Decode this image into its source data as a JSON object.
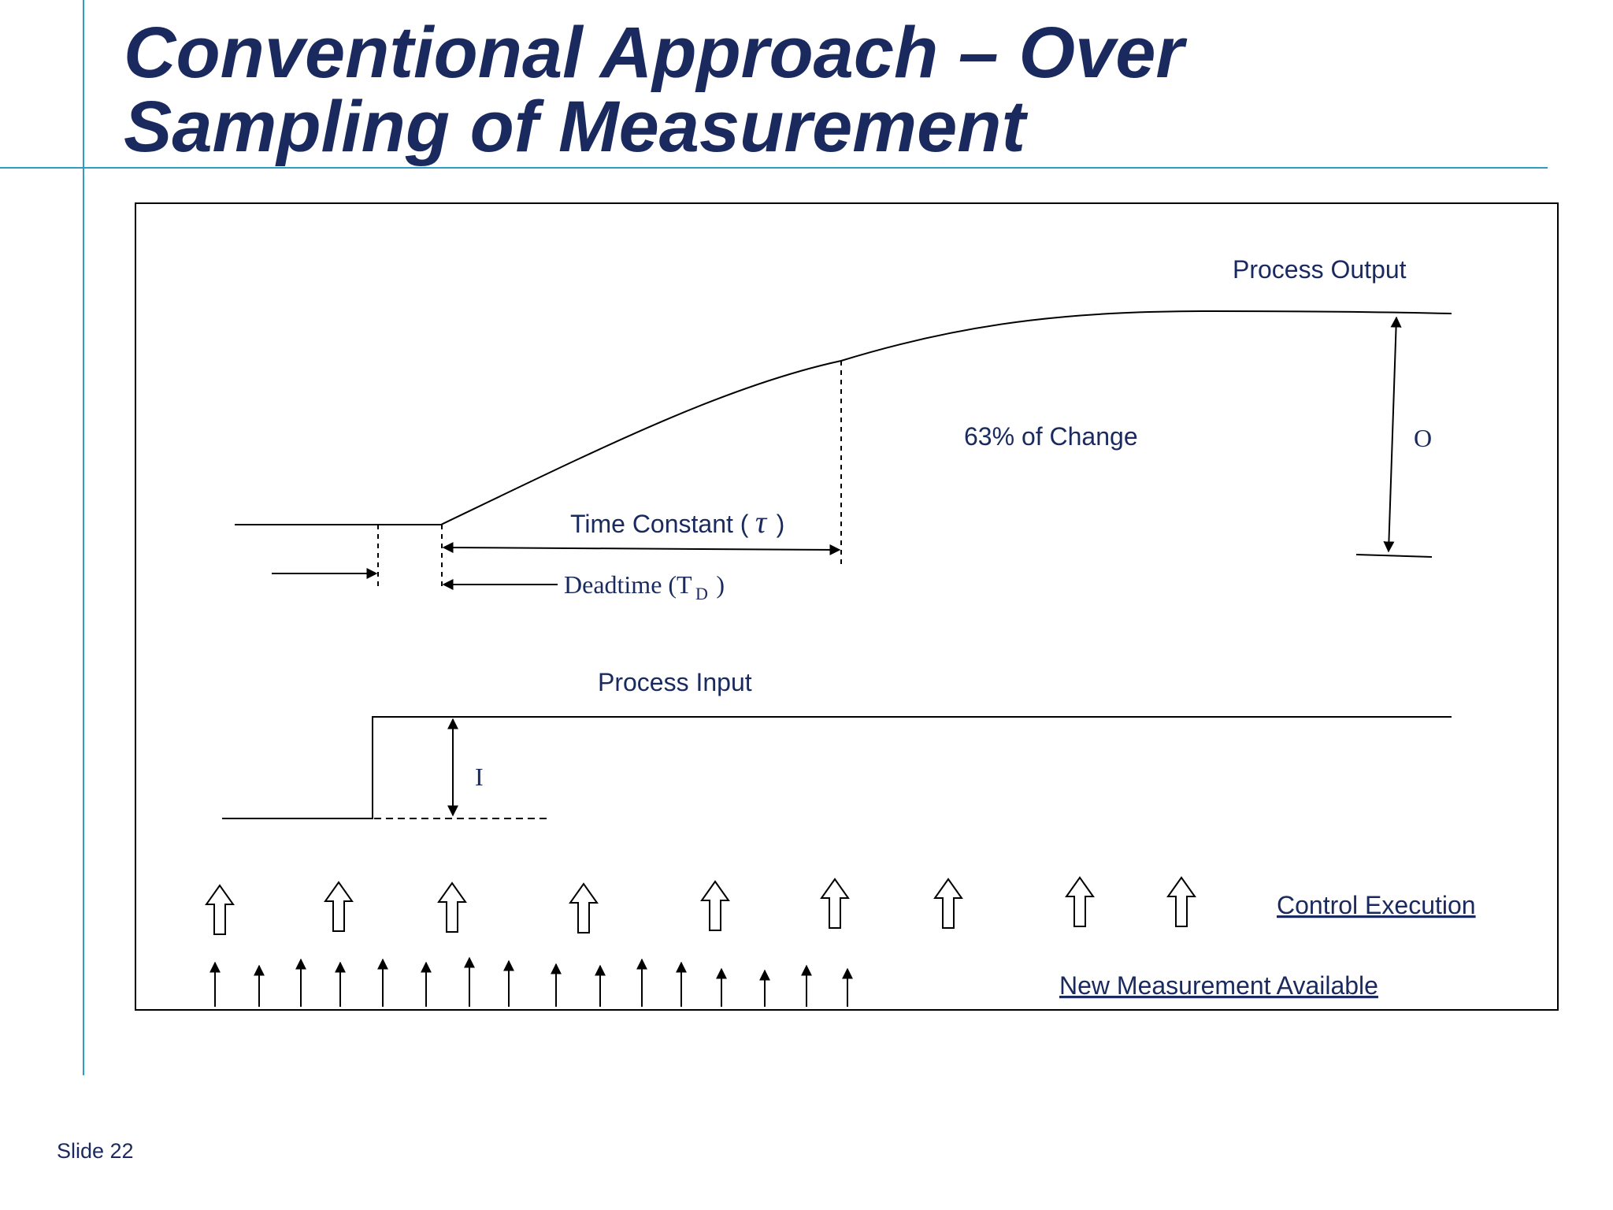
{
  "slide": {
    "title_line1": "Conventional Approach – Over",
    "title_line2": "Sampling of Measurement",
    "slide_number": "Slide 22"
  },
  "diagram": {
    "process_output_label": "Process Output",
    "change_label": "63% of Change",
    "output_change_symbol": "O",
    "time_constant_label": "Time Constant (",
    "tau_symbol": "τ",
    "close_paren": ")",
    "deadtime_label": "Deadtime (T",
    "deadtime_subscript": "D",
    "process_input_label": "Process Input",
    "input_change_symbol": "I",
    "control_execution_label": "Control Execution",
    "new_measurement_label": "New Measurement Available",
    "control_execution_count": 9,
    "new_measurement_count": 16
  }
}
